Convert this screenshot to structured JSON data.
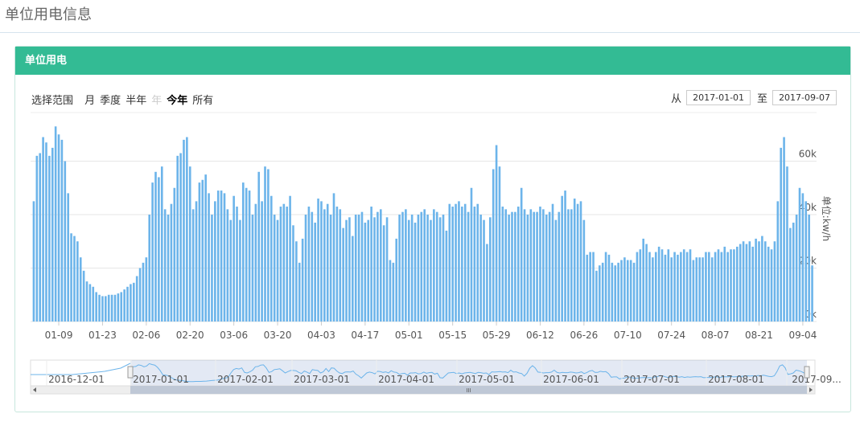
{
  "page_title": "单位用电信息",
  "panel_title": "单位用电",
  "range_selector": {
    "label": "选择范围",
    "buttons": [
      "月",
      "季度",
      "半年",
      "年",
      "今年",
      "所有"
    ],
    "disabled": "年",
    "selected": "今年"
  },
  "date_range": {
    "from_label": "从",
    "from": "2017-01-01",
    "to_label": "至",
    "to": "2017-09-07"
  },
  "navigator": {
    "labels": [
      "2016-12-01",
      "2017-01-01",
      "2017-02-01",
      "2017-03-01",
      "2017-04-01",
      "2017-05-01",
      "2017-06-01",
      "2017-07-01",
      "2017-08-01",
      "2017-09..."
    ],
    "scrollbar_label": "III"
  },
  "chart_data": {
    "type": "bar",
    "y_axis_title": "单位:kw/h",
    "color": "#6cb4ea",
    "grid": true,
    "ylim": [
      0,
      80000
    ],
    "yticks": [
      {
        "value": 0,
        "label": "0k"
      },
      {
        "value": 20000,
        "label": "20k"
      },
      {
        "value": 40000,
        "label": "40k"
      },
      {
        "value": 60000,
        "label": "60k"
      }
    ],
    "categories": [
      null,
      null,
      null,
      null,
      null,
      null,
      null,
      null,
      "01-09",
      null,
      null,
      null,
      null,
      null,
      null,
      null,
      null,
      null,
      null,
      null,
      null,
      null,
      "01-23",
      null,
      null,
      null,
      null,
      null,
      null,
      null,
      null,
      null,
      null,
      null,
      null,
      null,
      "02-06",
      null,
      null,
      null,
      null,
      null,
      null,
      null,
      null,
      null,
      null,
      null,
      null,
      null,
      "02-20",
      null,
      null,
      null,
      null,
      null,
      null,
      null,
      null,
      null,
      null,
      null,
      null,
      null,
      "03-06",
      null,
      null,
      null,
      null,
      null,
      null,
      null,
      null,
      null,
      null,
      null,
      null,
      null,
      "03-20",
      null,
      null,
      null,
      null,
      null,
      null,
      null,
      null,
      null,
      null,
      null,
      null,
      null,
      "04-03",
      null,
      null,
      null,
      null,
      null,
      null,
      null,
      null,
      null,
      null,
      null,
      null,
      null,
      "04-17",
      null,
      null,
      null,
      null,
      null,
      null,
      null,
      null,
      null,
      null,
      null,
      null,
      null,
      "05-01",
      null,
      null,
      null,
      null,
      null,
      null,
      null,
      null,
      null,
      null,
      null,
      null,
      null,
      "05-15",
      null,
      null,
      null,
      null,
      null,
      null,
      null,
      null,
      null,
      null,
      null,
      null,
      null,
      "05-29",
      null,
      null,
      null,
      null,
      null,
      null,
      null,
      null,
      null,
      null,
      null,
      null,
      null,
      "06-12",
      null,
      null,
      null,
      null,
      null,
      null,
      null,
      null,
      null,
      null,
      null,
      null,
      null,
      "06-26",
      null,
      null,
      null,
      null,
      null,
      null,
      null,
      null,
      null,
      null,
      null,
      null,
      null,
      "07-10",
      null,
      null,
      null,
      null,
      null,
      null,
      null,
      null,
      null,
      null,
      null,
      null,
      null,
      "07-24",
      null,
      null,
      null,
      null,
      null,
      null,
      null,
      null,
      null,
      null,
      null,
      null,
      null,
      "08-07",
      null,
      null,
      null,
      null,
      null,
      null,
      null,
      null,
      null,
      null,
      null,
      null,
      null,
      "08-21",
      null,
      null,
      null,
      null,
      null,
      null,
      null,
      null,
      null,
      null,
      null,
      null,
      null,
      "09-04",
      null,
      null,
      null
    ],
    "values": [
      45000,
      62000,
      63000,
      69000,
      67000,
      62000,
      65000,
      73000,
      70000,
      68000,
      60000,
      48000,
      33000,
      32000,
      30000,
      24000,
      19000,
      15000,
      14000,
      13000,
      11000,
      10000,
      9500,
      9500,
      10000,
      10000,
      10000,
      10500,
      11000,
      12000,
      13000,
      14000,
      14500,
      17000,
      20000,
      22000,
      24000,
      40000,
      52000,
      56000,
      54000,
      58000,
      42000,
      40000,
      44000,
      50000,
      62000,
      63000,
      68000,
      69000,
      58000,
      42000,
      45000,
      52000,
      53000,
      55000,
      48000,
      40000,
      45000,
      49000,
      49000,
      48000,
      42000,
      38000,
      47000,
      43000,
      38000,
      52000,
      50000,
      49000,
      40000,
      44000,
      56000,
      45000,
      58000,
      57000,
      47000,
      40000,
      38000,
      43000,
      44000,
      43000,
      47000,
      36000,
      30000,
      22000,
      31000,
      40000,
      43000,
      41000,
      37000,
      46000,
      45000,
      42000,
      44000,
      40000,
      48000,
      43000,
      42000,
      35000,
      38000,
      39000,
      32000,
      40000,
      40000,
      41000,
      37000,
      38000,
      43000,
      39000,
      41000,
      42000,
      36000,
      39000,
      23000,
      22000,
      31000,
      40000,
      41000,
      42000,
      38000,
      40000,
      37000,
      40000,
      41000,
      42000,
      40000,
      38000,
      42000,
      41000,
      39000,
      40000,
      34000,
      44000,
      43000,
      44000,
      45000,
      43000,
      44000,
      41000,
      50000,
      43000,
      44000,
      40000,
      38000,
      29000,
      39000,
      57000,
      66000,
      58000,
      43000,
      42000,
      40000,
      41000,
      41000,
      43000,
      50000,
      42000,
      40000,
      42000,
      41000,
      41000,
      43000,
      42000,
      40000,
      41000,
      44000,
      38000,
      41000,
      47000,
      49000,
      42000,
      42000,
      46000,
      44000,
      45000,
      38000,
      25000,
      26000,
      26000,
      19000,
      21000,
      22000,
      26000,
      25000,
      22000,
      21000,
      22000,
      23000,
      24000,
      23000,
      23000,
      22000,
      26000,
      27000,
      31000,
      29000,
      26000,
      24000,
      26000,
      28000,
      27000,
      25000,
      27000,
      24000,
      26000,
      25000,
      26000,
      27000,
      26000,
      27000,
      23000,
      24000,
      24000,
      24000,
      26000,
      26000,
      24000,
      26000,
      27000,
      26000,
      28000,
      26000,
      27000,
      27000,
      28000,
      29000,
      30000,
      29000,
      30000,
      28000,
      31000,
      30000,
      32000,
      30000,
      28000,
      27000,
      30000,
      45000,
      65000,
      69000,
      58000,
      35000,
      37000,
      40000,
      50000,
      48000,
      45000,
      40000,
      21000
    ]
  }
}
